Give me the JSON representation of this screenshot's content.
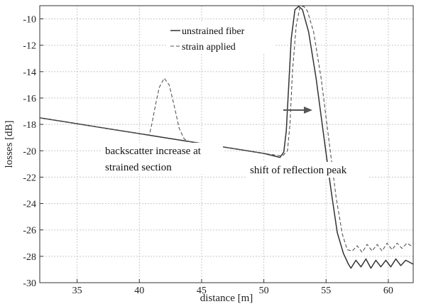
{
  "chart_data": {
    "type": "line",
    "xlabel": "distance [m]",
    "ylabel": "losses [dB]",
    "xlim": [
      32,
      62
    ],
    "ylim": [
      -30,
      -9
    ],
    "xticks": [
      35,
      40,
      45,
      50,
      55,
      60
    ],
    "yticks": [
      -30,
      -28,
      -26,
      -24,
      -22,
      -20,
      -18,
      -16,
      -14,
      -12,
      -10
    ],
    "grid": true,
    "legend_position": "top-center",
    "series": [
      {
        "name": "unstrained fiber",
        "style": "solid",
        "color": "#333333",
        "points": [
          [
            32,
            -17.5
          ],
          [
            34,
            -17.8
          ],
          [
            36,
            -18.1
          ],
          [
            38,
            -18.4
          ],
          [
            40,
            -18.7
          ],
          [
            42,
            -19.0
          ],
          [
            44,
            -19.3
          ],
          [
            46,
            -19.6
          ],
          [
            48,
            -19.9
          ],
          [
            50,
            -20.2
          ],
          [
            51.3,
            -20.5
          ],
          [
            51.6,
            -20.1
          ],
          [
            51.8,
            -18.5
          ],
          [
            52.0,
            -15.0
          ],
          [
            52.2,
            -11.5
          ],
          [
            52.5,
            -9.3
          ],
          [
            52.8,
            -9.05
          ],
          [
            53.1,
            -9.3
          ],
          [
            53.6,
            -11.0
          ],
          [
            54.2,
            -14.5
          ],
          [
            54.8,
            -18.8
          ],
          [
            55.4,
            -23.0
          ],
          [
            55.9,
            -26.2
          ],
          [
            56.4,
            -27.8
          ],
          [
            56.8,
            -28.6
          ],
          [
            57.0,
            -28.9
          ],
          [
            57.4,
            -28.3
          ],
          [
            57.8,
            -28.8
          ],
          [
            58.2,
            -28.2
          ],
          [
            58.6,
            -28.9
          ],
          [
            59.0,
            -28.3
          ],
          [
            59.4,
            -28.8
          ],
          [
            59.8,
            -28.3
          ],
          [
            60.2,
            -28.8
          ],
          [
            60.6,
            -28.2
          ],
          [
            61.0,
            -28.7
          ],
          [
            61.4,
            -28.3
          ],
          [
            62,
            -28.6
          ]
        ]
      },
      {
        "name": "strain applied",
        "style": "dashed",
        "color": "#555555",
        "points": [
          [
            32,
            -17.5
          ],
          [
            34,
            -17.8
          ],
          [
            36,
            -18.1
          ],
          [
            38,
            -18.4
          ],
          [
            40,
            -18.7
          ],
          [
            40.8,
            -18.8
          ],
          [
            41.0,
            -18.0
          ],
          [
            41.3,
            -16.5
          ],
          [
            41.6,
            -15.2
          ],
          [
            42.0,
            -14.5
          ],
          [
            42.4,
            -15.0
          ],
          [
            42.8,
            -16.6
          ],
          [
            43.2,
            -18.3
          ],
          [
            43.6,
            -19.1
          ],
          [
            44,
            -19.3
          ],
          [
            46,
            -19.6
          ],
          [
            48,
            -19.9
          ],
          [
            50,
            -20.2
          ],
          [
            51.5,
            -20.4
          ],
          [
            51.9,
            -20.0
          ],
          [
            52.1,
            -18.0
          ],
          [
            52.3,
            -14.0
          ],
          [
            52.6,
            -10.5
          ],
          [
            52.9,
            -9.1
          ],
          [
            53.2,
            -9.05
          ],
          [
            53.5,
            -9.4
          ],
          [
            54.0,
            -11.0
          ],
          [
            54.6,
            -14.5
          ],
          [
            55.2,
            -19.0
          ],
          [
            55.8,
            -23.5
          ],
          [
            56.3,
            -26.3
          ],
          [
            56.7,
            -27.5
          ],
          [
            57.1,
            -27.6
          ],
          [
            57.5,
            -27.2
          ],
          [
            57.9,
            -27.7
          ],
          [
            58.3,
            -27.1
          ],
          [
            58.7,
            -27.6
          ],
          [
            59.1,
            -27.1
          ],
          [
            59.5,
            -27.6
          ],
          [
            59.9,
            -27.0
          ],
          [
            60.3,
            -27.5
          ],
          [
            60.7,
            -27.0
          ],
          [
            61.1,
            -27.4
          ],
          [
            61.5,
            -27.0
          ],
          [
            62,
            -27.3
          ]
        ]
      }
    ],
    "annotations": [
      {
        "lines": [
          "backscatter increase at",
          "strained section"
        ]
      },
      {
        "lines": [
          "shift of reflection peak"
        ]
      }
    ]
  }
}
